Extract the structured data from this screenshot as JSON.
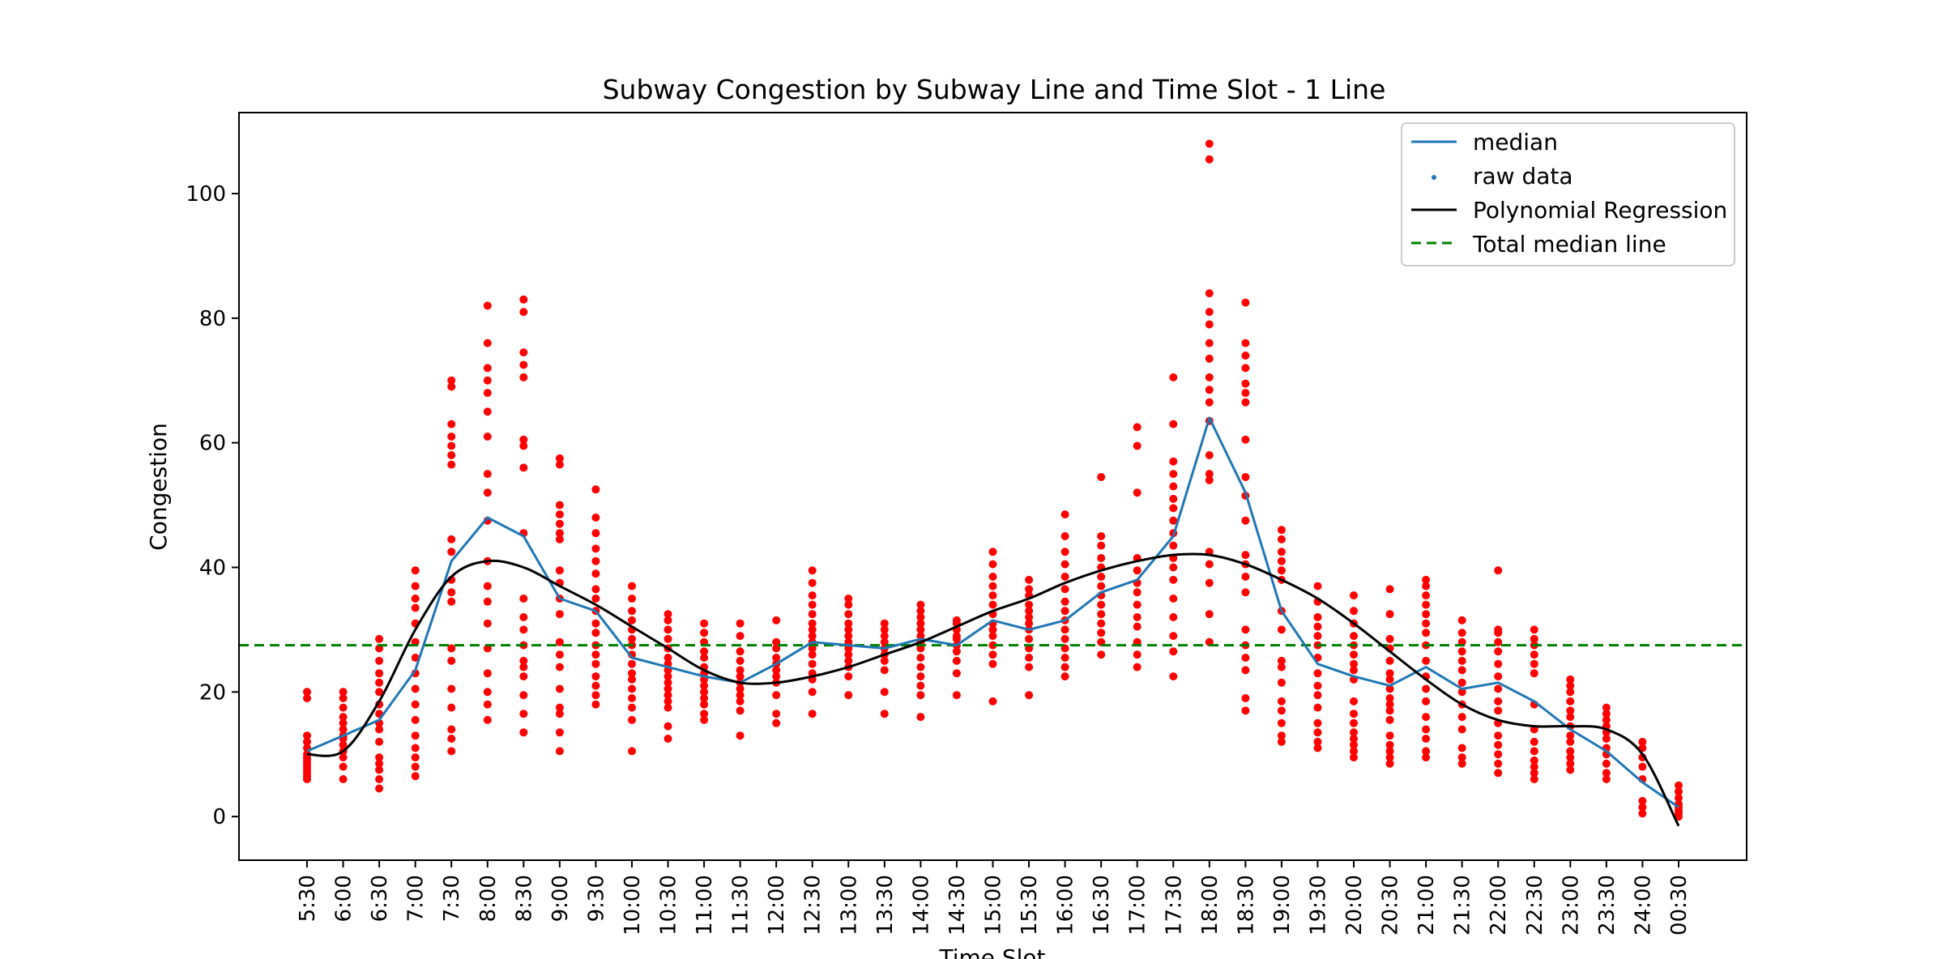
{
  "chart_data": {
    "type": "scatter",
    "title": "Subway Congestion by Subway Line and Time Slot - 1 Line",
    "xlabel": "Time Slot",
    "ylabel": "Congestion",
    "ylim": [
      -7,
      113
    ],
    "yticks": [
      0,
      20,
      40,
      60,
      80,
      100
    ],
    "grid": false,
    "legend_position": "top-right",
    "categories": [
      "5:30",
      "6:00",
      "6:30",
      "7:00",
      "7:30",
      "8:00",
      "8:30",
      "9:00",
      "9:30",
      "10:00",
      "10:30",
      "11:00",
      "11:30",
      "12:00",
      "12:30",
      "13:00",
      "13:30",
      "14:00",
      "14:30",
      "15:00",
      "15:30",
      "16:00",
      "16:30",
      "17:00",
      "17:30",
      "18:00",
      "18:30",
      "19:00",
      "19:30",
      "20:00",
      "20:30",
      "21:00",
      "21:30",
      "22:00",
      "22:30",
      "23:00",
      "23:30",
      "24:00",
      "00:30"
    ],
    "legend": [
      "median",
      "raw data",
      "Polynomial Regression",
      "Total median line"
    ],
    "colors": {
      "median": "#1f77b4",
      "raw_data": "#ff0000",
      "regression": "#000000",
      "total_median": "#008000"
    },
    "series": [
      {
        "name": "median",
        "kind": "line",
        "values": [
          10.5,
          13,
          15.5,
          23.5,
          41,
          48,
          45,
          35,
          33,
          25.5,
          24,
          22.5,
          21.5,
          24.5,
          28,
          27.5,
          27,
          28.5,
          27.5,
          31.5,
          30,
          31.5,
          36,
          38,
          45,
          64,
          52,
          33,
          24.5,
          22.5,
          21,
          24,
          20.5,
          21.5,
          18.5,
          14,
          10.5,
          5.5,
          1.5
        ]
      },
      {
        "name": "Polynomial Regression",
        "kind": "line",
        "values": [
          10,
          10.5,
          18.5,
          30,
          38.5,
          41,
          40,
          37,
          34,
          30.5,
          27,
          23.5,
          21.5,
          21.5,
          22.5,
          24,
          26,
          28,
          30.5,
          33,
          35,
          37.5,
          39.5,
          41,
          42,
          42,
          40.5,
          38,
          35,
          31,
          26.5,
          22,
          18,
          15.5,
          14.5,
          14.5,
          14,
          10,
          -1.5
        ]
      },
      {
        "name": "Total median line",
        "kind": "hline",
        "value": 27.5
      },
      {
        "name": "raw data",
        "kind": "scatter",
        "points_per_category": [
          [
            6,
            6.5,
            7,
            7.5,
            8,
            8.5,
            9,
            9.5,
            10,
            11,
            12,
            13,
            19,
            20
          ],
          [
            6,
            8,
            9.5,
            10.5,
            11.5,
            12.5,
            13,
            14,
            15,
            16,
            17.5,
            19,
            20
          ],
          [
            4.5,
            6,
            7.5,
            8.5,
            9.5,
            12,
            14,
            15,
            16.5,
            18,
            20,
            21.5,
            23,
            25,
            27,
            28.5
          ],
          [
            6.5,
            8,
            9.5,
            11,
            13,
            15.5,
            18,
            20.5,
            23,
            25.5,
            28,
            31,
            33.5,
            35,
            37,
            39.5
          ],
          [
            10.5,
            12.5,
            14,
            17.5,
            20.5,
            25,
            27,
            34.5,
            36,
            38,
            42.5,
            44.5,
            56.5,
            58,
            59.5,
            61,
            63,
            69,
            70
          ],
          [
            15.5,
            18,
            20,
            23,
            27,
            31,
            34.5,
            37,
            41,
            47.5,
            52,
            55,
            61,
            65,
            68,
            70,
            72,
            76,
            82
          ],
          [
            13.5,
            16.5,
            19.5,
            22.5,
            24,
            25,
            27.5,
            30,
            32,
            35,
            45.5,
            56,
            59.5,
            60.5,
            70.5,
            72.5,
            74.5,
            81,
            83
          ],
          [
            10.5,
            13.5,
            16.5,
            17.5,
            20.5,
            24,
            26,
            28,
            32.5,
            35,
            37.5,
            39.5,
            44.5,
            45.5,
            47,
            48.5,
            50,
            56.5,
            57.5
          ],
          [
            18,
            19.5,
            21,
            22.5,
            24.5,
            26,
            27.5,
            29.5,
            31,
            33,
            35,
            36.5,
            39,
            41,
            43,
            45.5,
            48,
            52.5
          ],
          [
            10.5,
            15.5,
            17.5,
            19,
            20.5,
            22,
            23,
            24.5,
            26,
            27.5,
            28.5,
            30,
            31.5,
            33,
            35,
            37
          ],
          [
            12.5,
            14.5,
            17.5,
            18.5,
            19.5,
            20.5,
            21.5,
            22.5,
            23.5,
            24.5,
            25.5,
            27,
            28.5,
            30,
            31.5,
            32.5
          ],
          [
            15.5,
            16.5,
            18,
            19,
            20,
            21,
            22,
            23,
            24,
            25.5,
            26.5,
            28,
            29.5,
            31
          ],
          [
            13,
            17,
            18.5,
            19.5,
            20.5,
            21.5,
            22.5,
            23.5,
            25,
            26.5,
            29,
            31
          ],
          [
            15,
            16.5,
            19.5,
            21.5,
            22.5,
            23.5,
            24.5,
            25.5,
            27,
            28,
            31.5
          ],
          [
            16.5,
            20,
            22,
            23,
            24.5,
            26,
            27,
            28,
            29,
            30,
            31,
            32.5,
            34,
            35.5,
            37.5,
            39.5
          ],
          [
            19.5,
            22.5,
            24,
            25,
            26,
            27,
            28,
            29,
            30,
            31,
            32.5,
            34,
            35
          ],
          [
            16.5,
            20,
            23.5,
            25,
            26,
            27,
            28,
            29,
            30,
            31
          ],
          [
            16,
            19.5,
            21,
            22.5,
            24,
            25.5,
            27,
            28,
            29,
            30,
            31,
            32,
            33,
            34
          ],
          [
            19.5,
            23,
            25,
            26.5,
            27.5,
            28.5,
            29,
            30,
            31,
            31.5
          ],
          [
            18.5,
            24.5,
            26,
            27.5,
            29,
            30,
            31,
            32.5,
            34,
            35.5,
            37,
            38.5,
            40.5,
            42.5
          ],
          [
            19.5,
            24,
            25.5,
            27,
            28.5,
            30,
            31,
            32,
            33,
            34,
            35.5,
            36.5,
            38
          ],
          [
            22.5,
            24,
            25.5,
            27,
            28.5,
            30,
            31.5,
            33,
            34.5,
            36.5,
            38.5,
            40.5,
            42.5,
            45,
            48.5
          ],
          [
            26,
            28,
            29.5,
            31,
            32.5,
            34,
            35.5,
            37,
            38.5,
            40,
            41.5,
            43.5,
            45,
            54.5
          ],
          [
            24,
            26,
            28,
            30.5,
            32,
            34,
            36,
            37.5,
            39.5,
            41.5,
            52,
            59.5,
            62.5
          ],
          [
            22.5,
            26.5,
            29,
            32,
            35,
            38,
            40,
            41.5,
            43.5,
            45.5,
            47.5,
            49.5,
            51,
            53,
            55,
            57,
            63,
            70.5
          ],
          [
            28,
            32.5,
            37.5,
            40.5,
            42.5,
            54,
            55,
            58,
            63.5,
            66.5,
            68.5,
            70.5,
            73.5,
            76,
            79,
            81,
            84,
            105.5,
            108
          ],
          [
            17,
            19,
            23.5,
            25.5,
            27.5,
            30,
            36,
            38.5,
            40.5,
            42,
            47.5,
            51.5,
            54.5,
            60.5,
            66.5,
            68,
            69.5,
            72,
            74,
            76,
            82.5
          ],
          [
            12,
            13,
            15,
            17,
            18.5,
            21.5,
            24,
            25,
            30,
            33,
            38,
            39.5,
            41,
            42.5,
            44.5,
            46
          ],
          [
            11,
            12,
            13.5,
            15,
            17.5,
            19.5,
            21,
            23,
            25.5,
            27.5,
            29,
            30.5,
            32,
            34.5,
            37
          ],
          [
            9.5,
            10.5,
            11.5,
            12.5,
            13.5,
            15,
            16.5,
            18.5,
            22,
            23.5,
            24.5,
            26,
            27.5,
            29,
            31,
            33,
            35.5
          ],
          [
            8.5,
            9.5,
            10.5,
            11.5,
            13,
            15.5,
            17,
            18,
            19,
            20.5,
            22,
            23,
            25,
            27,
            28.5,
            32.5,
            36.5
          ],
          [
            9.5,
            10.5,
            12.5,
            14,
            16,
            18.5,
            20.5,
            22.5,
            25,
            27.5,
            29.5,
            31,
            32.5,
            34,
            35.5,
            37,
            38
          ],
          [
            8.5,
            9.5,
            11,
            14,
            16,
            18,
            20,
            21.5,
            23.5,
            25,
            26.5,
            28,
            29.5,
            31.5
          ],
          [
            7,
            8.5,
            10,
            11.5,
            13,
            15,
            17,
            18.5,
            20.5,
            22.5,
            24.5,
            26.5,
            28,
            29.5,
            30,
            39.5
          ],
          [
            6,
            7,
            8,
            9,
            10.5,
            12,
            14,
            18,
            23,
            24.5,
            26,
            27.5,
            28.5,
            30
          ],
          [
            7.5,
            8.5,
            9.5,
            10.5,
            12,
            13,
            14.5,
            16,
            17,
            18.5,
            20,
            21,
            22
          ],
          [
            6,
            7,
            8.5,
            10,
            11,
            12.5,
            13.5,
            14.5,
            15.5,
            16.5,
            17.5
          ],
          [
            0.5,
            1.5,
            2.5,
            6,
            8,
            9.5,
            11,
            12
          ],
          [
            0,
            0.5,
            1,
            1.5,
            2,
            3,
            4,
            5
          ]
        ]
      }
    ]
  }
}
